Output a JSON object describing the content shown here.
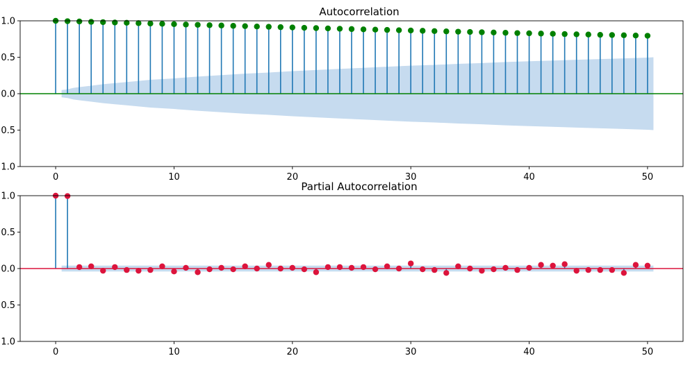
{
  "colors": {
    "stem": "#1f77b4",
    "band": "#c6dbef",
    "acf_marker": "#008000",
    "acf_zero_line": "#008000",
    "pacf_marker": "#dc143c",
    "pacf_zero_line": "#dc143c"
  },
  "chart_data": [
    {
      "type": "scatter",
      "title": "Autocorrelation",
      "xlabel": "",
      "ylabel": "",
      "xlim": [
        -3,
        53
      ],
      "ylim": [
        -1.0,
        1.0
      ],
      "xticks": [
        0,
        10,
        20,
        30,
        40,
        50
      ],
      "yticks": [
        -1.0,
        -0.5,
        0.0,
        0.5,
        1.0
      ],
      "ytick_labels": [
        "−1.0",
        "−0.5",
        "0.0",
        "0.5",
        "1.0"
      ],
      "grid": false,
      "x": [
        0,
        1,
        2,
        3,
        4,
        5,
        6,
        7,
        8,
        9,
        10,
        11,
        12,
        13,
        14,
        15,
        16,
        17,
        18,
        19,
        20,
        21,
        22,
        23,
        24,
        25,
        26,
        27,
        28,
        29,
        30,
        31,
        32,
        33,
        34,
        35,
        36,
        37,
        38,
        39,
        40,
        41,
        42,
        43,
        44,
        45,
        46,
        47,
        48,
        49,
        50
      ],
      "values": [
        1.0,
        0.995,
        0.991,
        0.986,
        0.982,
        0.977,
        0.973,
        0.968,
        0.963,
        0.959,
        0.954,
        0.949,
        0.945,
        0.94,
        0.936,
        0.931,
        0.927,
        0.922,
        0.918,
        0.913,
        0.909,
        0.904,
        0.9,
        0.896,
        0.891,
        0.887,
        0.883,
        0.879,
        0.875,
        0.871,
        0.867,
        0.863,
        0.859,
        0.855,
        0.851,
        0.847,
        0.843,
        0.84,
        0.836,
        0.832,
        0.829,
        0.825,
        0.822,
        0.818,
        0.815,
        0.812,
        0.808,
        0.805,
        0.802,
        0.798,
        0.795
      ],
      "band_x": [
        0.5,
        1,
        1.5,
        2,
        3,
        4,
        5,
        6,
        7,
        8,
        9,
        10,
        12,
        14,
        16,
        18,
        20,
        22,
        24,
        26,
        28,
        30,
        32,
        34,
        36,
        38,
        40,
        42,
        44,
        46,
        48,
        50,
        50.5
      ],
      "band": [
        0.05,
        0.06,
        0.08,
        0.09,
        0.11,
        0.13,
        0.145,
        0.16,
        0.175,
        0.19,
        0.2,
        0.21,
        0.235,
        0.255,
        0.275,
        0.29,
        0.31,
        0.325,
        0.34,
        0.355,
        0.37,
        0.385,
        0.395,
        0.41,
        0.42,
        0.435,
        0.445,
        0.455,
        0.465,
        0.475,
        0.485,
        0.495,
        0.5
      ]
    },
    {
      "type": "scatter",
      "title": "Partial Autocorrelation",
      "xlabel": "",
      "ylabel": "",
      "xlim": [
        -3,
        53
      ],
      "ylim": [
        -1.0,
        1.0
      ],
      "xticks": [
        0,
        10,
        20,
        30,
        40,
        50
      ],
      "yticks": [
        -1.0,
        -0.5,
        0.0,
        0.5,
        1.0
      ],
      "ytick_labels": [
        "−1.0",
        "−0.5",
        "0.0",
        "0.5",
        "1.0"
      ],
      "grid": false,
      "x": [
        0,
        1,
        2,
        3,
        4,
        5,
        6,
        7,
        8,
        9,
        10,
        11,
        12,
        13,
        14,
        15,
        16,
        17,
        18,
        19,
        20,
        21,
        22,
        23,
        24,
        25,
        26,
        27,
        28,
        29,
        30,
        31,
        32,
        33,
        34,
        35,
        36,
        37,
        38,
        39,
        40,
        41,
        42,
        43,
        44,
        45,
        46,
        47,
        48,
        49,
        50
      ],
      "values": [
        1.0,
        0.995,
        0.02,
        0.03,
        -0.03,
        0.02,
        -0.02,
        -0.03,
        -0.02,
        0.03,
        -0.04,
        0.01,
        -0.05,
        -0.01,
        0.01,
        -0.01,
        0.03,
        0.0,
        0.05,
        0.0,
        0.01,
        -0.01,
        -0.05,
        0.02,
        0.02,
        0.01,
        0.02,
        -0.01,
        0.03,
        0.0,
        0.07,
        -0.01,
        -0.02,
        -0.06,
        0.03,
        0.0,
        -0.03,
        -0.01,
        0.01,
        -0.02,
        0.01,
        0.05,
        0.04,
        0.06,
        -0.03,
        -0.02,
        -0.02,
        -0.02,
        -0.06,
        0.05,
        0.04
      ],
      "band_x": [
        0.5,
        50.5
      ],
      "band": [
        0.04,
        0.04
      ]
    }
  ]
}
